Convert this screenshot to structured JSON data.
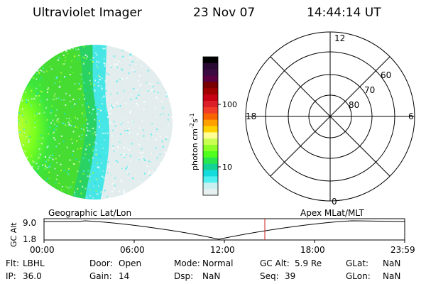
{
  "header": {
    "instrument": "Ultraviolet Imager",
    "date": "23 Nov 07",
    "time": "14:44:14 UT"
  },
  "colorbar": {
    "label": "photon cm",
    "label_sup1": "-2",
    "label_mid": "s",
    "label_sup2": "-1",
    "ticks": [
      "100",
      "10"
    ],
    "colors": [
      "#000000",
      "#2a0a33",
      "#3a0a40",
      "#5a0040",
      "#7a0000",
      "#a00000",
      "#c80014",
      "#dc1e28",
      "#f03c28",
      "#f86400",
      "#ffa000",
      "#ffd200",
      "#ffff96",
      "#c8ff50",
      "#8cff28",
      "#50ff1e",
      "#28e650",
      "#14d296",
      "#14dcdc",
      "#50f0f0",
      "#c8f0f0",
      "#e6f0f0"
    ]
  },
  "polar_grid": {
    "mlt_labels": [
      "12",
      "18",
      "6",
      "0"
    ],
    "lat_labels": [
      "60",
      "70",
      "80"
    ]
  },
  "timeline": {
    "left_label": "Geographic Lat/Lon",
    "right_label": "Apex  MLat/MLT",
    "axis_label": "GC Alt",
    "y_top": "9.0",
    "y_bottom": "1.8",
    "x_ticks": [
      "00:00",
      "06:00",
      "12:00",
      "18:00",
      "23:59"
    ],
    "marker_time": "14:44"
  },
  "info": {
    "flt_label": "Flt:",
    "flt_value": "LBHL",
    "door_label": "Door:",
    "door_value": "Open",
    "mode_label": "Mode:",
    "mode_value": "Normal",
    "gcalt_label": "GC Alt:",
    "gcalt_value": "5.9 Re",
    "glat_label": "GLat:",
    "glat_value": "NaN",
    "ip_label": "IP:",
    "ip_value": "36.0",
    "gain_label": "Gain:",
    "gain_value": "14",
    "dsp_label": "Dsp:",
    "dsp_value": "NaN",
    "seq_label": "Seq:",
    "seq_value": "39",
    "glon_label": "GLon:",
    "glon_value": "NaN"
  },
  "accent_colors": {
    "marker": "#cc2222",
    "outline": "#000000"
  }
}
